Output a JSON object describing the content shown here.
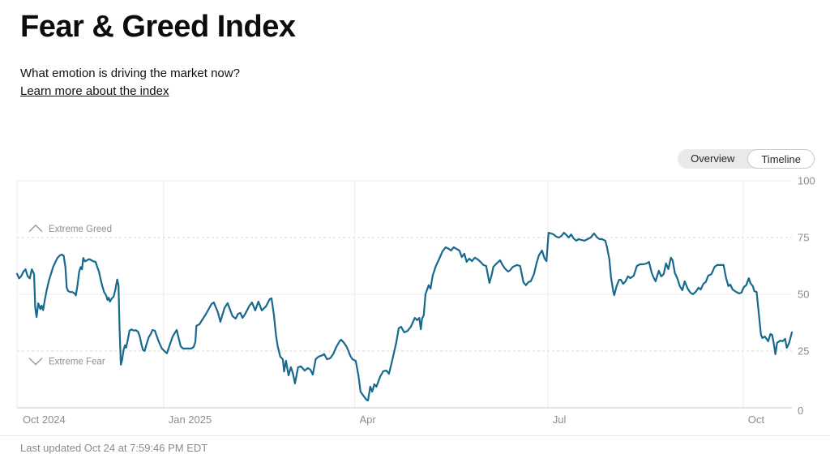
{
  "header": {
    "title": "Fear & Greed Index",
    "subtitle": "What emotion is driving the market now?",
    "learn_more": "Learn more about the index"
  },
  "controls": {
    "overview_label": "Overview",
    "timeline_label": "Timeline",
    "active_view": "Timeline"
  },
  "footer": {
    "last_updated": "Last updated Oct 24 at 7:59:46 PM EDT"
  },
  "chart_data": {
    "type": "line",
    "title": "Fear & Greed Index one-year timeline",
    "x_unit": "days since Oct 24, 2024",
    "x_range": [
      0,
      365
    ],
    "y_range": [
      0,
      100
    ],
    "line_color": "#17698e",
    "grid_color": "#ececec",
    "dashed_grid_color": "#d9d9d9",
    "axis_line_color": "#c9c9c9",
    "axis_text_color": "#8c8c8c",
    "annotation_text_color": "#8f8f8f",
    "legend_position": "none",
    "y_ticks": [
      {
        "value": 0,
        "label": "0",
        "style": "solid"
      },
      {
        "value": 25,
        "label": "25",
        "style": "dashed"
      },
      {
        "value": 50,
        "label": "50",
        "style": "solid"
      },
      {
        "value": 75,
        "label": "75",
        "style": "dashed"
      },
      {
        "value": 100,
        "label": "100",
        "style": "solid"
      }
    ],
    "x_ticks": [
      {
        "label": "Oct 2024",
        "day": 0,
        "gridline": false
      },
      {
        "label": "Jan 2025",
        "day": 69,
        "gridline": true
      },
      {
        "label": "Apr",
        "day": 159,
        "gridline": true
      },
      {
        "label": "Jul",
        "day": 250,
        "gridline": true
      },
      {
        "label": "Oct",
        "day": 342,
        "gridline": true
      }
    ],
    "annotations": [
      {
        "label": "Extreme Greed",
        "chevron": "up",
        "value": 79
      },
      {
        "label": "Extreme Fear",
        "chevron": "down",
        "value": 20.5
      }
    ],
    "points": [
      [
        0,
        59
      ],
      [
        1,
        57
      ],
      [
        2,
        58
      ],
      [
        3,
        60
      ],
      [
        4,
        61
      ],
      [
        5,
        58
      ],
      [
        6,
        57
      ],
      [
        7,
        61
      ],
      [
        8,
        59
      ],
      [
        8.6,
        44
      ],
      [
        9.2,
        40
      ],
      [
        10,
        46
      ],
      [
        11,
        43.5
      ],
      [
        11.6,
        45
      ],
      [
        12.3,
        43
      ],
      [
        13,
        47
      ],
      [
        14,
        52
      ],
      [
        15,
        56
      ],
      [
        16,
        59
      ],
      [
        17,
        62
      ],
      [
        18,
        64
      ],
      [
        19,
        66
      ],
      [
        20,
        67
      ],
      [
        21,
        67.5
      ],
      [
        22,
        67
      ],
      [
        22.8,
        62
      ],
      [
        23.4,
        53
      ],
      [
        24,
        51.5
      ],
      [
        25,
        51
      ],
      [
        26,
        51
      ],
      [
        27,
        50.5
      ],
      [
        27.7,
        49.5
      ],
      [
        28.5,
        54
      ],
      [
        29.3,
        60
      ],
      [
        30,
        62
      ],
      [
        30.6,
        61
      ],
      [
        31.2,
        66
      ],
      [
        32,
        64.5
      ],
      [
        33,
        65
      ],
      [
        34,
        65.5
      ],
      [
        35,
        65
      ],
      [
        36,
        64.5
      ],
      [
        37,
        64.3
      ],
      [
        37.8,
        62
      ],
      [
        38.6,
        60
      ],
      [
        39.4,
        56.5
      ],
      [
        40.2,
        53.5
      ],
      [
        41,
        51
      ],
      [
        42,
        49.5
      ],
      [
        42.6,
        47.5
      ],
      [
        43.2,
        48.5
      ],
      [
        43.8,
        46.8
      ],
      [
        44.5,
        48
      ],
      [
        45.5,
        49
      ],
      [
        46.3,
        52
      ],
      [
        47.2,
        56.5
      ],
      [
        47.8,
        54
      ],
      [
        48.3,
        35
      ],
      [
        48.9,
        19
      ],
      [
        49.5,
        21
      ],
      [
        50.2,
        25.5
      ],
      [
        50.8,
        27.5
      ],
      [
        51.4,
        26.5
      ],
      [
        52.2,
        30
      ],
      [
        53,
        34
      ],
      [
        54,
        34.5
      ],
      [
        55,
        34
      ],
      [
        56,
        34.2
      ],
      [
        57,
        33.5
      ],
      [
        57.8,
        31.5
      ],
      [
        58.6,
        28
      ],
      [
        59.3,
        25.5
      ],
      [
        60.1,
        25
      ],
      [
        61,
        28
      ],
      [
        62,
        31
      ],
      [
        63,
        32.5
      ],
      [
        63.8,
        34.3
      ],
      [
        64.9,
        34
      ],
      [
        66.8,
        29
      ],
      [
        68.3,
        26
      ],
      [
        70.6,
        24
      ],
      [
        73.3,
        31.4
      ],
      [
        75.2,
        34.3
      ],
      [
        77.1,
        27.1
      ],
      [
        78.2,
        26.1
      ],
      [
        82,
        26.1
      ],
      [
        83.2,
        26.8
      ],
      [
        84,
        29
      ],
      [
        84.5,
        36.1
      ],
      [
        85.9,
        36.8
      ],
      [
        87.8,
        39.6
      ],
      [
        88.9,
        41.1
      ],
      [
        91.6,
        45.7
      ],
      [
        92.7,
        46.4
      ],
      [
        94.6,
        42.1
      ],
      [
        95.8,
        37.9
      ],
      [
        97.7,
        43.9
      ],
      [
        99.2,
        46.1
      ],
      [
        101.5,
        40.4
      ],
      [
        103,
        39.3
      ],
      [
        104.1,
        41.4
      ],
      [
        105.2,
        41.8
      ],
      [
        106.2,
        39.6
      ],
      [
        107.5,
        41.4
      ],
      [
        109.5,
        45
      ],
      [
        110.7,
        46.4
      ],
      [
        112.2,
        42.9
      ],
      [
        113.7,
        46.8
      ],
      [
        115.3,
        42.9
      ],
      [
        117.2,
        44.6
      ],
      [
        119.1,
        47.9
      ],
      [
        119.9,
        48.2
      ],
      [
        121,
        41
      ],
      [
        122,
        32
      ],
      [
        122.8,
        27.1
      ],
      [
        124,
        22.5
      ],
      [
        125.2,
        21.4
      ],
      [
        125.8,
        16
      ],
      [
        126.7,
        20.7
      ],
      [
        127.9,
        14.3
      ],
      [
        129,
        17.9
      ],
      [
        130,
        15
      ],
      [
        130.9,
        10.7
      ],
      [
        132.4,
        17.9
      ],
      [
        133.8,
        18.2
      ],
      [
        135.5,
        16.4
      ],
      [
        137,
        17.5
      ],
      [
        138.2,
        16.8
      ],
      [
        139.3,
        14.6
      ],
      [
        140.7,
        21.4
      ],
      [
        142,
        22.5
      ],
      [
        143.5,
        23
      ],
      [
        144.7,
        23.6
      ],
      [
        146,
        21.4
      ],
      [
        147.5,
        21.8
      ],
      [
        148.9,
        23.6
      ],
      [
        150.4,
        26.8
      ],
      [
        151.9,
        29.3
      ],
      [
        152.7,
        30
      ],
      [
        154,
        28.6
      ],
      [
        155.3,
        26.8
      ],
      [
        156.1,
        25
      ],
      [
        157,
        22.9
      ],
      [
        158,
        21.4
      ],
      [
        159.5,
        20.7
      ],
      [
        160.8,
        14.3
      ],
      [
        161.8,
        7.1
      ],
      [
        163.4,
        5
      ],
      [
        164.5,
        3.6
      ],
      [
        165.3,
        3.2
      ],
      [
        166.4,
        9.3
      ],
      [
        167.3,
        7.1
      ],
      [
        168.3,
        10.4
      ],
      [
        169.3,
        9.3
      ],
      [
        171,
        13.6
      ],
      [
        172.5,
        16.1
      ],
      [
        174,
        16.4
      ],
      [
        175.2,
        15
      ],
      [
        176.7,
        20.7
      ],
      [
        178.6,
        28.6
      ],
      [
        179.8,
        35
      ],
      [
        180.9,
        35.7
      ],
      [
        182.4,
        33.2
      ],
      [
        184,
        33.9
      ],
      [
        185.5,
        35.7
      ],
      [
        187.4,
        39.6
      ],
      [
        188.5,
        38.6
      ],
      [
        189.5,
        39.6
      ],
      [
        190.2,
        34.6
      ],
      [
        190.8,
        39.3
      ],
      [
        191.6,
        40.7
      ],
      [
        192.4,
        50
      ],
      [
        193.9,
        54
      ],
      [
        194.8,
        52.5
      ],
      [
        195.8,
        58.2
      ],
      [
        197.3,
        62.5
      ],
      [
        198.9,
        65.7
      ],
      [
        200.4,
        68.9
      ],
      [
        201.9,
        70.7
      ],
      [
        203.4,
        70
      ],
      [
        204.4,
        69.3
      ],
      [
        205.7,
        70.7
      ],
      [
        207,
        70
      ],
      [
        208.4,
        69.3
      ],
      [
        209.5,
        66.4
      ],
      [
        210.7,
        67.9
      ],
      [
        211.8,
        64.3
      ],
      [
        213,
        65.7
      ],
      [
        214.3,
        64.6
      ],
      [
        215.6,
        66.1
      ],
      [
        217,
        65.4
      ],
      [
        218.3,
        64.3
      ],
      [
        219.7,
        62.9
      ],
      [
        221,
        62.5
      ],
      [
        222.5,
        55
      ],
      [
        223.5,
        58.2
      ],
      [
        224.4,
        62.1
      ],
      [
        225.9,
        63.6
      ],
      [
        227.5,
        65
      ],
      [
        228.7,
        62.9
      ],
      [
        229.8,
        61.4
      ],
      [
        231.3,
        60
      ],
      [
        232.4,
        60.7
      ],
      [
        233.6,
        62.1
      ],
      [
        235.5,
        62.9
      ],
      [
        237,
        62.5
      ],
      [
        238.5,
        55.4
      ],
      [
        239.7,
        54
      ],
      [
        240.9,
        55.4
      ],
      [
        242,
        55.7
      ],
      [
        243.5,
        58.9
      ],
      [
        244.7,
        63.6
      ],
      [
        245.8,
        67.1
      ],
      [
        247.3,
        69.3
      ],
      [
        248.5,
        65.7
      ],
      [
        249.4,
        64.6
      ],
      [
        250.4,
        77.1
      ],
      [
        251.6,
        76.8
      ],
      [
        252.7,
        76.4
      ],
      [
        254,
        75.4
      ],
      [
        255.3,
        75
      ],
      [
        256.4,
        75.7
      ],
      [
        257.6,
        77.1
      ],
      [
        258.8,
        76.1
      ],
      [
        259.9,
        75
      ],
      [
        261,
        76.4
      ],
      [
        262.2,
        74.6
      ],
      [
        263.4,
        73.6
      ],
      [
        264.6,
        74.3
      ],
      [
        266,
        73.9
      ],
      [
        267.3,
        73.6
      ],
      [
        268.7,
        74.3
      ],
      [
        270.2,
        75
      ],
      [
        271.8,
        76.8
      ],
      [
        273.3,
        75
      ],
      [
        274.4,
        74.3
      ],
      [
        275.6,
        74.3
      ],
      [
        277.1,
        73.6
      ],
      [
        277.9,
        70.7
      ],
      [
        279,
        65.4
      ],
      [
        279.8,
        57.5
      ],
      [
        280.9,
        51.1
      ],
      [
        281.3,
        49.6
      ],
      [
        282.4,
        53.6
      ],
      [
        283.6,
        56.4
      ],
      [
        284.4,
        56.4
      ],
      [
        285.5,
        54.6
      ],
      [
        286.6,
        55.7
      ],
      [
        287.8,
        57.9
      ],
      [
        288.9,
        57.1
      ],
      [
        290.5,
        58.2
      ],
      [
        292,
        62.5
      ],
      [
        293.5,
        63.2
      ],
      [
        295,
        63.2
      ],
      [
        296.6,
        63.6
      ],
      [
        297.7,
        64.3
      ],
      [
        298.9,
        59.6
      ],
      [
        299.8,
        57.5
      ],
      [
        300.8,
        55.7
      ],
      [
        302.3,
        60.4
      ],
      [
        303.4,
        57.9
      ],
      [
        304.6,
        58.9
      ],
      [
        305.7,
        63.6
      ],
      [
        306.8,
        61.1
      ],
      [
        308,
        66.1
      ],
      [
        308.8,
        65
      ],
      [
        309.9,
        59.3
      ],
      [
        311,
        57.1
      ],
      [
        312.2,
        53.6
      ],
      [
        313.4,
        51.8
      ],
      [
        314.5,
        55.7
      ],
      [
        315.9,
        52.5
      ],
      [
        317.2,
        50.7
      ],
      [
        318.3,
        50
      ],
      [
        319.7,
        51.1
      ],
      [
        321,
        52.9
      ],
      [
        322,
        52.1
      ],
      [
        323.3,
        54.6
      ],
      [
        324.4,
        55.4
      ],
      [
        325.6,
        58.2
      ],
      [
        327.1,
        58.9
      ],
      [
        328.6,
        62.1
      ],
      [
        329.8,
        62.9
      ],
      [
        331.3,
        62.9
      ],
      [
        332.8,
        62.9
      ],
      [
        334,
        57.1
      ],
      [
        335.1,
        53.6
      ],
      [
        336,
        54.3
      ],
      [
        337.1,
        52.1
      ],
      [
        338.6,
        51.1
      ],
      [
        340.1,
        50.4
      ],
      [
        341.2,
        50.7
      ],
      [
        342.4,
        53.2
      ],
      [
        343.5,
        54
      ],
      [
        344.7,
        57.1
      ],
      [
        345.4,
        55
      ],
      [
        346.6,
        53.6
      ],
      [
        347.3,
        51.4
      ],
      [
        348.4,
        51
      ],
      [
        349.6,
        39.6
      ],
      [
        350.4,
        32.3
      ],
      [
        351.1,
        30.7
      ],
      [
        352.3,
        31.4
      ],
      [
        353.8,
        29.3
      ],
      [
        354.9,
        32.5
      ],
      [
        355.7,
        32.1
      ],
      [
        356.5,
        28.2
      ],
      [
        357.2,
        23.6
      ],
      [
        358,
        28.6
      ],
      [
        359.5,
        29.6
      ],
      [
        360.6,
        29.3
      ],
      [
        361.8,
        30.4
      ],
      [
        362.6,
        26.4
      ],
      [
        363.7,
        28.6
      ],
      [
        365,
        33.2
      ]
    ]
  }
}
